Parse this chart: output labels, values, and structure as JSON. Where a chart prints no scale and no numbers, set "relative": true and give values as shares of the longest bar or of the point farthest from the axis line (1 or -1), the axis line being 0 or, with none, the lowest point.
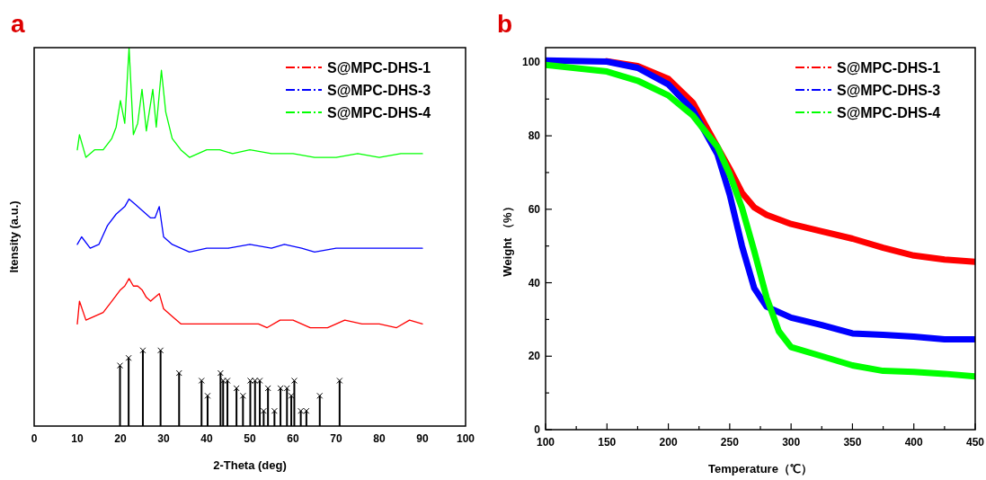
{
  "chart_data": [
    {
      "type": "line",
      "title": "a",
      "xlabel": "2-Theta (deg)",
      "ylabel": "Itensity (a.u.)",
      "relative": true,
      "xlim": [
        0,
        100
      ],
      "xticks": [
        0,
        10,
        20,
        30,
        40,
        50,
        60,
        70,
        80,
        90,
        100
      ],
      "legend": "top right",
      "series": [
        {
          "name": "S@MPC-DHS-1",
          "color": "#ff0000",
          "x": [
            10,
            10.5,
            12,
            14,
            16,
            18,
            20,
            21,
            22,
            23,
            24,
            25,
            26,
            27,
            28,
            29,
            30,
            32,
            34,
            36,
            40,
            44,
            48,
            52,
            54,
            57,
            60,
            64,
            68,
            72,
            76,
            80,
            84,
            87,
            90
          ],
          "values": [
            0.27,
            0.33,
            0.28,
            0.29,
            0.3,
            0.33,
            0.36,
            0.37,
            0.39,
            0.37,
            0.37,
            0.36,
            0.34,
            0.33,
            0.34,
            0.35,
            0.31,
            0.29,
            0.27,
            0.27,
            0.27,
            0.27,
            0.27,
            0.27,
            0.26,
            0.28,
            0.28,
            0.26,
            0.26,
            0.28,
            0.27,
            0.27,
            0.26,
            0.28,
            0.27
          ]
        },
        {
          "name": "S@MPC-DHS-3",
          "color": "#0000ff",
          "x": [
            10,
            11,
            13,
            15,
            17,
            19,
            21,
            22,
            23,
            24,
            25,
            26,
            27,
            28,
            29,
            30,
            32,
            34,
            36,
            40,
            45,
            50,
            55,
            58,
            62,
            65,
            70,
            75,
            80,
            85,
            90
          ],
          "values": [
            0.48,
            0.5,
            0.47,
            0.48,
            0.53,
            0.56,
            0.58,
            0.6,
            0.59,
            0.58,
            0.57,
            0.56,
            0.55,
            0.55,
            0.58,
            0.5,
            0.48,
            0.47,
            0.46,
            0.47,
            0.47,
            0.48,
            0.47,
            0.48,
            0.47,
            0.46,
            0.47,
            0.47,
            0.47,
            0.47,
            0.47
          ]
        },
        {
          "name": "S@MPC-DHS-4",
          "color": "#00ff00",
          "x": [
            10,
            10.5,
            12,
            14,
            16,
            18,
            19,
            20,
            21,
            22,
            23,
            24,
            25,
            26,
            27.5,
            28.3,
            29.5,
            30.5,
            32,
            34,
            36,
            40,
            43,
            46,
            50,
            55,
            60,
            65,
            70,
            75,
            80,
            85,
            90
          ],
          "values": [
            0.73,
            0.77,
            0.71,
            0.73,
            0.73,
            0.76,
            0.79,
            0.86,
            0.8,
            1.0,
            0.77,
            0.8,
            0.89,
            0.78,
            0.89,
            0.79,
            0.94,
            0.83,
            0.76,
            0.73,
            0.71,
            0.73,
            0.73,
            0.72,
            0.73,
            0.72,
            0.72,
            0.71,
            0.71,
            0.72,
            0.71,
            0.72,
            0.72
          ]
        },
        {
          "type": "lollipop",
          "color": "#000000",
          "marker": "cross",
          "x": [
            19.9,
            21.9,
            25.2,
            29.3,
            33.6,
            38.8,
            40.2,
            43.2,
            43.8,
            44.8,
            46.9,
            48.4,
            50.1,
            51.2,
            52.3,
            53.2,
            54.2,
            55.7,
            57.1,
            58.6,
            59.6,
            60.3,
            61.8,
            63.1,
            66.2,
            70.8
          ],
          "values": [
            0.16,
            0.18,
            0.2,
            0.2,
            0.14,
            0.12,
            0.08,
            0.14,
            0.12,
            0.12,
            0.1,
            0.08,
            0.12,
            0.12,
            0.12,
            0.04,
            0.1,
            0.04,
            0.1,
            0.1,
            0.08,
            0.12,
            0.04,
            0.04,
            0.08,
            0.12
          ]
        }
      ]
    },
    {
      "type": "line",
      "title": "b",
      "xlabel": "Temperature（℃）",
      "ylabel": "Weight （%）",
      "xlim": [
        100,
        450
      ],
      "ylim": [
        0,
        104
      ],
      "xticks": [
        100,
        {
          "value": 125,
          "label": null
        },
        150,
        {
          "value": 175,
          "label": null
        },
        200,
        {
          "value": 225,
          "label": null
        },
        250,
        {
          "value": 275,
          "label": null
        },
        300,
        {
          "value": 325,
          "label": null
        },
        350,
        {
          "value": 375,
          "label": null
        },
        400,
        {
          "value": 425,
          "label": null
        },
        450
      ],
      "yticks": [
        0,
        {
          "value": 10,
          "label": null
        },
        20,
        {
          "value": 30,
          "label": null
        },
        40,
        {
          "value": 50,
          "label": null
        },
        60,
        {
          "value": 70,
          "label": null
        },
        80,
        {
          "value": 90,
          "label": null
        },
        100
      ],
      "legend": "top right",
      "series": [
        {
          "name": "S@MPC-DHS-1",
          "color": "#ff0000",
          "x": [
            150,
            175,
            200,
            220,
            240,
            250,
            260,
            270,
            280,
            300,
            325,
            350,
            375,
            400,
            425,
            450
          ],
          "values": [
            100.3,
            99,
            95.5,
            89,
            77,
            71,
            64.5,
            60.5,
            58.5,
            56,
            54,
            52,
            49.5,
            47.4,
            46.3,
            45.7
          ]
        },
        {
          "name": "S@MPC-DHS-3",
          "color": "#0000ff",
          "x": [
            100,
            150,
            175,
            200,
            220,
            240,
            250,
            260,
            270,
            280,
            300,
            325,
            350,
            375,
            400,
            425,
            450
          ],
          "values": [
            100.5,
            100.2,
            98.5,
            94,
            87,
            75,
            64,
            50,
            38.5,
            33.5,
            30.5,
            28.5,
            26.2,
            25.8,
            25.3,
            24.6,
            24.6
          ]
        },
        {
          "name": "S@MPC-DHS-4",
          "color": "#00ff00",
          "x": [
            100,
            150,
            175,
            200,
            220,
            240,
            250,
            260,
            270,
            280,
            290,
            300,
            325,
            350,
            375,
            400,
            425,
            450
          ],
          "values": [
            99.3,
            97.5,
            95,
            91,
            85.5,
            77,
            69.5,
            60.4,
            48.6,
            36,
            26.8,
            22.5,
            20,
            17.5,
            16,
            15.7,
            15.2,
            14.5
          ]
        }
      ]
    }
  ]
}
